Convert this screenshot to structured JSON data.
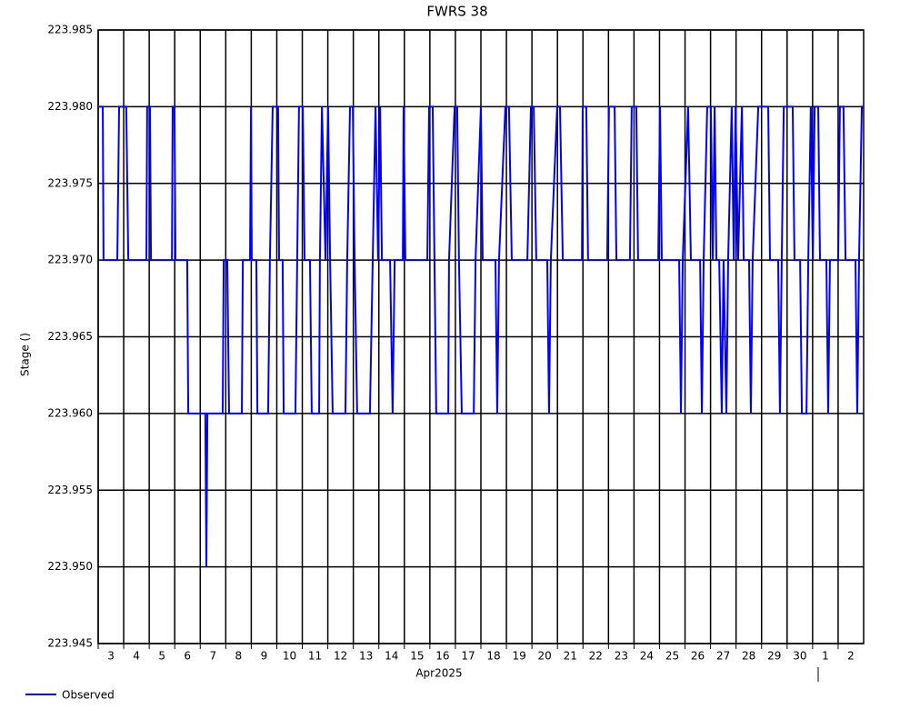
{
  "chart_data": {
    "type": "line",
    "title": "FWRS 38",
    "y_label": "Stage ()",
    "x_label": "Apr2025",
    "xlim": [
      3,
      33
    ],
    "ylim": [
      223.945,
      223.985
    ],
    "xticks": [
      3,
      4,
      5,
      6,
      7,
      8,
      9,
      10,
      11,
      12,
      13,
      14,
      15,
      16,
      17,
      18,
      19,
      20,
      21,
      22,
      23,
      24,
      25,
      26,
      27,
      28,
      29,
      30,
      {
        "value": 31,
        "label": "1"
      },
      {
        "value": 32,
        "label": "2"
      }
    ],
    "yticks": [
      223.945,
      {
        "value": 223.95,
        "label": "223.950"
      },
      223.955,
      {
        "value": 223.96,
        "label": "223.960"
      },
      223.965,
      {
        "value": 223.97,
        "label": "223.970"
      },
      223.975,
      {
        "value": 223.98,
        "label": "223.980"
      },
      223.985
    ],
    "grid": true,
    "series": [
      {
        "name": "Observed",
        "color": "#0000ff",
        "x": [
          3.0,
          3.18,
          3.21,
          3.75,
          3.82,
          4.1,
          4.18,
          4.89,
          4.92,
          5.03,
          5.07,
          5.89,
          5.92,
          5.99,
          6.03,
          6.49,
          6.53,
          7.2,
          7.24,
          7.28,
          7.88,
          7.92,
          8.06,
          8.13,
          8.63,
          8.67,
          8.95,
          8.99,
          9.02,
          9.2,
          9.24,
          9.66,
          9.73,
          9.84,
          10.05,
          10.09,
          10.23,
          10.27,
          10.73,
          10.8,
          10.87,
          11.02,
          11.09,
          11.3,
          11.37,
          11.66,
          11.69,
          11.77,
          11.91,
          12.01,
          12.09,
          12.19,
          12.69,
          12.76,
          12.87,
          12.98,
          13.05,
          13.15,
          13.65,
          13.76,
          13.87,
          13.97,
          14.05,
          14.12,
          14.44,
          14.54,
          14.62,
          14.94,
          14.97,
          15.04,
          15.9,
          15.97,
          16.11,
          16.18,
          16.25,
          16.72,
          16.75,
          16.97,
          17.07,
          17.14,
          17.25,
          17.72,
          17.79,
          18.0,
          18.07,
          18.57,
          18.64,
          18.71,
          18.96,
          19.1,
          19.21,
          19.82,
          19.96,
          20.07,
          20.17,
          20.6,
          20.67,
          20.74,
          20.99,
          21.1,
          21.21,
          21.96,
          21.99,
          22.13,
          22.2,
          22.95,
          23.02,
          23.24,
          23.31,
          23.84,
          23.91,
          24.09,
          24.16,
          24.95,
          25.02,
          25.09,
          25.77,
          25.84,
          25.91,
          26.12,
          26.23,
          26.59,
          26.66,
          26.73,
          26.87,
          27.01,
          27.09,
          27.16,
          27.23,
          27.34,
          27.44,
          27.51,
          27.62,
          27.69,
          27.83,
          27.91,
          27.98,
          28.08,
          28.23,
          28.3,
          28.51,
          28.58,
          28.65,
          28.87,
          29.26,
          29.33,
          29.65,
          29.72,
          29.79,
          29.87,
          30.22,
          30.29,
          30.51,
          30.58,
          30.76,
          30.83,
          30.93,
          31.01,
          31.08,
          31.22,
          31.29,
          31.54,
          31.61,
          31.68,
          32.0,
          32.07,
          32.21,
          32.29,
          32.68,
          32.75,
          32.82,
          32.93,
          33.0
        ],
        "values": [
          223.98,
          223.98,
          223.97,
          223.97,
          223.98,
          223.98,
          223.97,
          223.97,
          223.98,
          223.98,
          223.97,
          223.97,
          223.98,
          223.98,
          223.97,
          223.97,
          223.96,
          223.96,
          223.95,
          223.96,
          223.96,
          223.97,
          223.97,
          223.96,
          223.96,
          223.97,
          223.97,
          223.98,
          223.97,
          223.97,
          223.96,
          223.96,
          223.97,
          223.98,
          223.98,
          223.97,
          223.97,
          223.96,
          223.96,
          223.97,
          223.98,
          223.98,
          223.97,
          223.97,
          223.96,
          223.96,
          223.97,
          223.98,
          223.97,
          223.98,
          223.97,
          223.96,
          223.96,
          223.97,
          223.98,
          223.98,
          223.97,
          223.96,
          223.96,
          223.97,
          223.98,
          223.97,
          223.98,
          223.97,
          223.97,
          223.96,
          223.97,
          223.97,
          223.98,
          223.97,
          223.97,
          223.98,
          223.98,
          223.97,
          223.96,
          223.96,
          223.97,
          223.98,
          223.98,
          223.97,
          223.96,
          223.96,
          223.97,
          223.98,
          223.97,
          223.97,
          223.96,
          223.97,
          223.98,
          223.98,
          223.97,
          223.97,
          223.98,
          223.98,
          223.97,
          223.97,
          223.96,
          223.97,
          223.98,
          223.98,
          223.97,
          223.97,
          223.98,
          223.98,
          223.97,
          223.97,
          223.98,
          223.98,
          223.97,
          223.97,
          223.98,
          223.98,
          223.97,
          223.97,
          223.98,
          223.97,
          223.97,
          223.96,
          223.97,
          223.98,
          223.97,
          223.97,
          223.96,
          223.97,
          223.98,
          223.98,
          223.97,
          223.98,
          223.97,
          223.97,
          223.96,
          223.97,
          223.96,
          223.97,
          223.98,
          223.97,
          223.98,
          223.97,
          223.98,
          223.97,
          223.97,
          223.96,
          223.97,
          223.98,
          223.98,
          223.97,
          223.97,
          223.96,
          223.97,
          223.98,
          223.98,
          223.97,
          223.97,
          223.96,
          223.96,
          223.97,
          223.98,
          223.97,
          223.98,
          223.98,
          223.97,
          223.97,
          223.96,
          223.97,
          223.97,
          223.98,
          223.98,
          223.97,
          223.97,
          223.96,
          223.97,
          223.98,
          223.98
        ]
      }
    ]
  }
}
